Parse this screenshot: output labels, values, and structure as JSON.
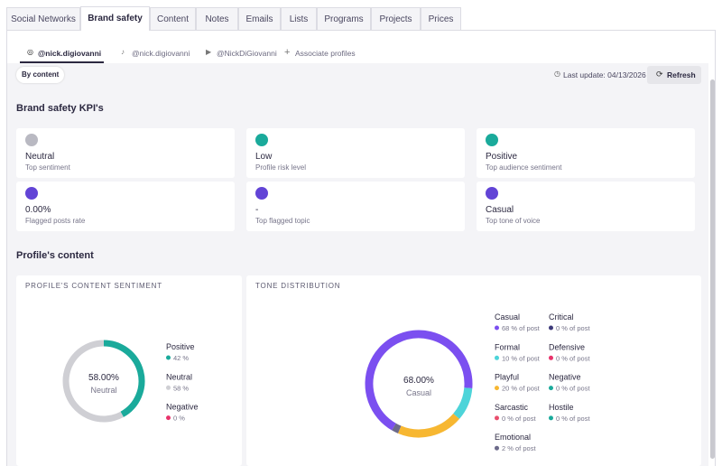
{
  "tabs": [
    "Social Networks",
    "Brand safety",
    "Content",
    "Notes",
    "Emails",
    "Lists",
    "Programs",
    "Projects",
    "Prices"
  ],
  "profiles": [
    "@nick.digiovanni",
    "@nick.digiovanni",
    "@NickDiGiovanni"
  ],
  "associate": "Associate profiles",
  "filter": "By content",
  "last_update": "Last update: 04/13/2026",
  "refresh": "Refresh",
  "kpi_title": "Brand safety KPI's",
  "kpis": [
    {
      "value": "Neutral",
      "label": "Top sentiment"
    },
    {
      "value": "Low",
      "label": "Profile risk level"
    },
    {
      "value": "Positive",
      "label": "Top audience sentiment"
    },
    {
      "value": "0.00%",
      "label": "Flagged posts rate"
    },
    {
      "value": "-",
      "label": "Top flagged topic"
    },
    {
      "value": "Casual",
      "label": "Top tone of voice"
    }
  ],
  "content_title": "Profile's content",
  "sentiment": {
    "type": "donut",
    "title": "PROFILE'S CONTENT SENTIMENT",
    "center_value": "58.00%",
    "center_label": "Neutral",
    "categories": [
      "Positive",
      "Neutral",
      "Negative"
    ],
    "values": [
      42,
      58,
      0
    ],
    "value_labels": [
      "42 %",
      "58 %",
      "0 %"
    ],
    "colors": [
      "#1aaa9b",
      "#cfcfd4",
      "#e8336b"
    ]
  },
  "tone": {
    "type": "donut",
    "title": "TONE DISTRIBUTION",
    "center_value": "68.00%",
    "center_label": "Casual",
    "categories": [
      "Casual",
      "Formal",
      "Playful",
      "Sarcastic",
      "Emotional",
      "Critical",
      "Defensive",
      "Negative",
      "Hostile"
    ],
    "values": [
      68,
      10,
      20,
      0,
      2,
      0,
      0,
      0,
      0
    ],
    "value_labels": [
      "68 % of post",
      "10 % of post",
      "20 % of post",
      "0 % of post",
      "2 % of post",
      "0 % of post",
      "0 % of post",
      "0 % of post",
      "0 % of post"
    ],
    "colors": [
      "#7b4ff0",
      "#4dd4d9",
      "#f7b731",
      "#e94f6d",
      "#6c6a8a",
      "#3d3a7a",
      "#e8336b",
      "#1aaa9b",
      "#1aaa9b"
    ]
  }
}
